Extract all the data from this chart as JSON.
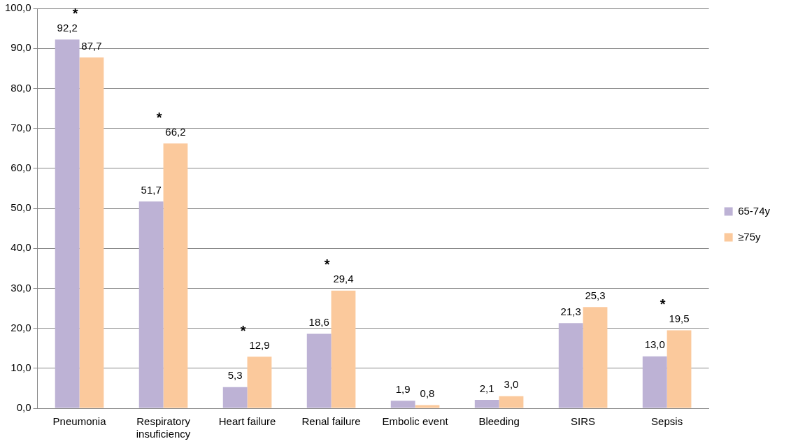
{
  "chart_data": {
    "type": "bar",
    "categories": [
      "Pneumonia",
      "Respiratory insuficiency",
      "Heart failure",
      "Renal failure",
      "Embolic event",
      "Bleeding",
      "SIRS",
      "Sepsis"
    ],
    "series": [
      {
        "name": "65-74y",
        "color": "#bdb2d5",
        "values": [
          92.2,
          51.7,
          5.3,
          18.6,
          1.9,
          2.1,
          21.3,
          13.0
        ],
        "value_labels": [
          "92,2",
          "51,7",
          "5,3",
          "18,6",
          "1,9",
          "2,1",
          "21,3",
          "13,0"
        ]
      },
      {
        "name": "≥75y",
        "color": "#fbc99c",
        "values": [
          87.7,
          66.2,
          12.9,
          29.4,
          0.8,
          3.0,
          25.3,
          19.5
        ],
        "value_labels": [
          "87,7",
          "66,2",
          "12,9",
          "29,4",
          "0,8",
          "3,0",
          "25,3",
          "19,5"
        ]
      }
    ],
    "ylim": [
      0,
      100
    ],
    "yticks": [
      {
        "value": 0,
        "label": "0,0"
      },
      {
        "value": 10,
        "label": "10,0"
      },
      {
        "value": 20,
        "label": "20,0"
      },
      {
        "value": 30,
        "label": "30,0"
      },
      {
        "value": 40,
        "label": "40,0"
      },
      {
        "value": 50,
        "label": "50,0"
      },
      {
        "value": 60,
        "label": "60,0"
      },
      {
        "value": 70,
        "label": "70,0"
      },
      {
        "value": 80,
        "label": "80,0"
      },
      {
        "value": 90,
        "label": "90,0"
      },
      {
        "value": 100,
        "label": "100,0"
      }
    ],
    "grid": "y",
    "legend": "right",
    "annotations": [
      {
        "text": "*",
        "x": "Pneumonia",
        "y": 92.2
      },
      {
        "text": "*",
        "x": "Respiratory insuficiency",
        "y": 66.2
      },
      {
        "text": "*",
        "x": "Heart failure",
        "y": 12.9
      },
      {
        "text": "*",
        "x": "Renal failure",
        "y": 29.4
      },
      {
        "text": "*",
        "x": "Sepsis",
        "y": 19.5
      }
    ]
  }
}
